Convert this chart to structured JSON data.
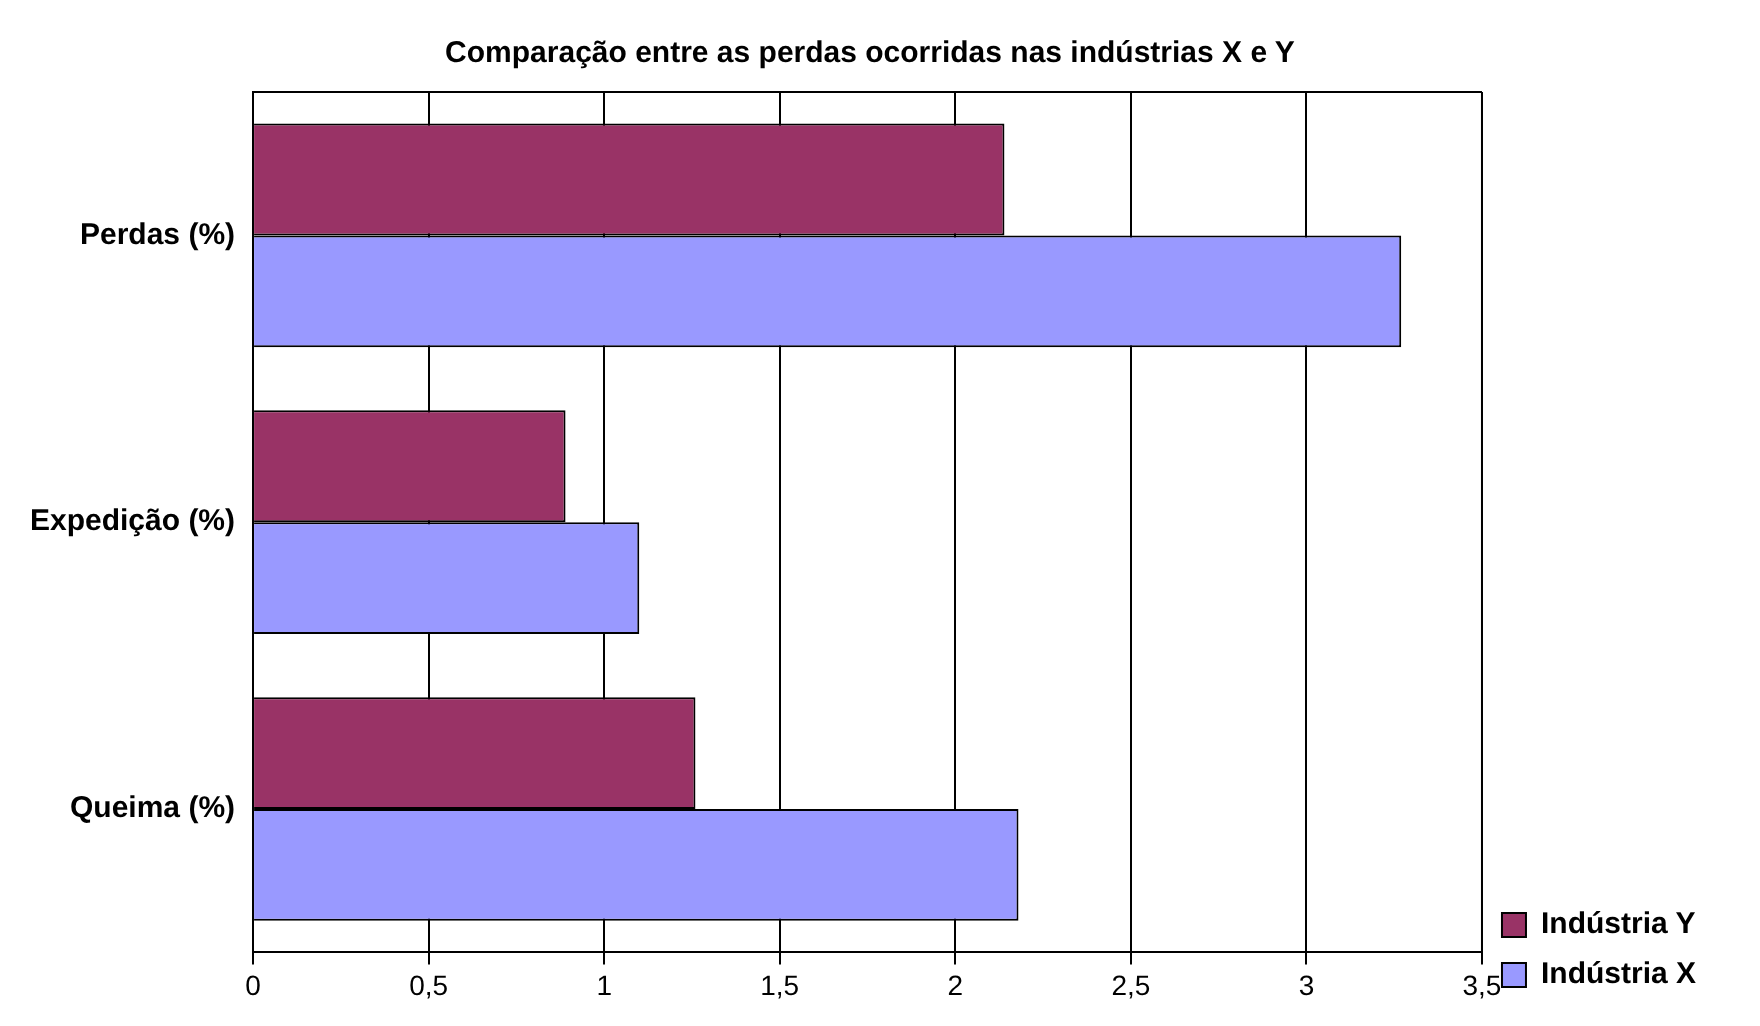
{
  "chart_data": {
    "type": "bar",
    "orientation": "horizontal",
    "title": "Comparação entre as perdas ocorridas nas indústrias X e Y",
    "categories": [
      "Perdas (%)",
      "Expedição (%)",
      "Queima (%)"
    ],
    "series": [
      {
        "name": "Indústria Y",
        "color": "#993366",
        "values": [
          2.14,
          0.89,
          1.26
        ]
      },
      {
        "name": "Indústria X",
        "color": "#9999ff",
        "values": [
          3.27,
          1.1,
          2.18
        ]
      }
    ],
    "xlim": [
      0,
      3.5
    ],
    "xticks": [
      0,
      {
        "value": 0.5,
        "label": "0,5"
      },
      1,
      {
        "value": 1.5,
        "label": "1,5"
      },
      2,
      {
        "value": 2.5,
        "label": "2,5"
      },
      3,
      {
        "value": 3.5,
        "label": "3,5"
      }
    ],
    "grid": "x",
    "legend": "bottom right"
  }
}
